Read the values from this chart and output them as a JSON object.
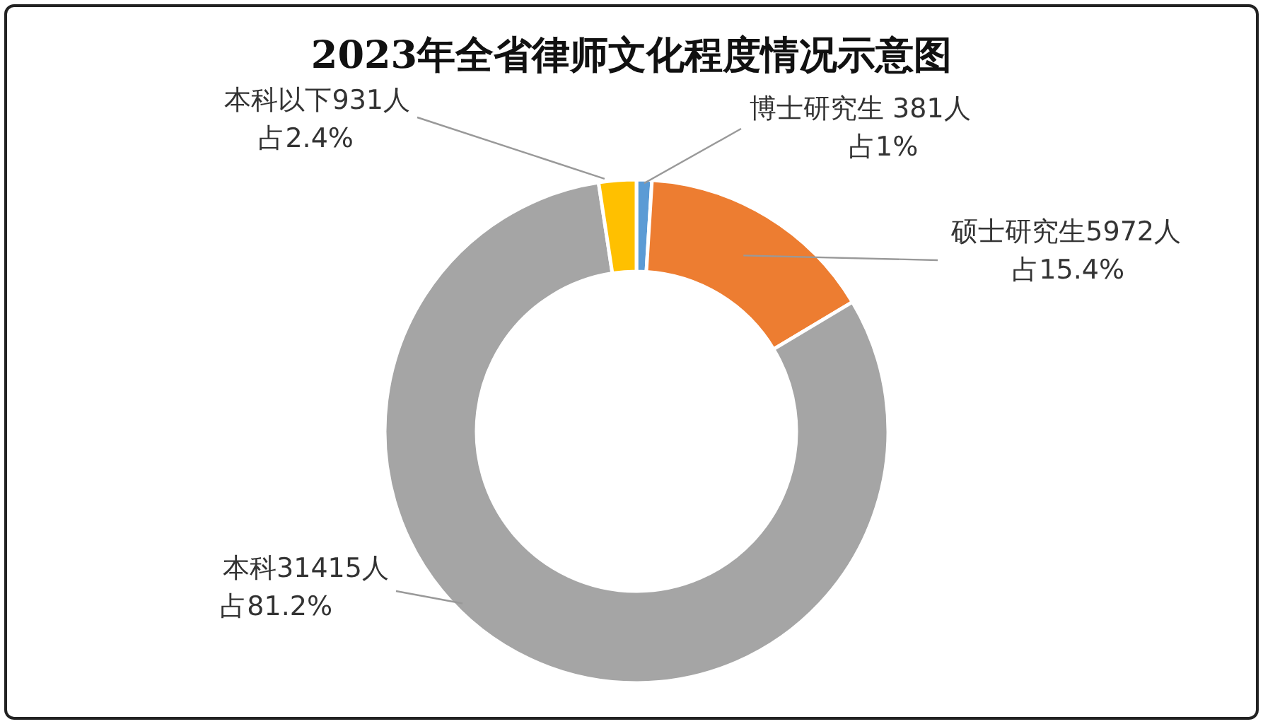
{
  "chart_data": {
    "type": "donut",
    "title": "2023年全省律师文化程度情况示意图",
    "categories": [
      "博士研究生",
      "硕士研究生",
      "本科",
      "本科以下"
    ],
    "values": [
      381,
      5972,
      31415,
      931
    ],
    "colors": [
      "#5b9bd5",
      "#ed7d31",
      "#a5a5a5",
      "#ffc000"
    ],
    "value_labels": [
      " 381人",
      "5972人",
      "31415人",
      "931人"
    ],
    "annotations": [
      {
        "text": "占1%",
        "x": "博士研究生"
      },
      {
        "text": "占15.4%",
        "x": "硕士研究生"
      },
      {
        "text": "占81.2%",
        "x": "本科"
      },
      {
        "text": "占2.4%",
        "x": "本科以下"
      }
    ]
  }
}
